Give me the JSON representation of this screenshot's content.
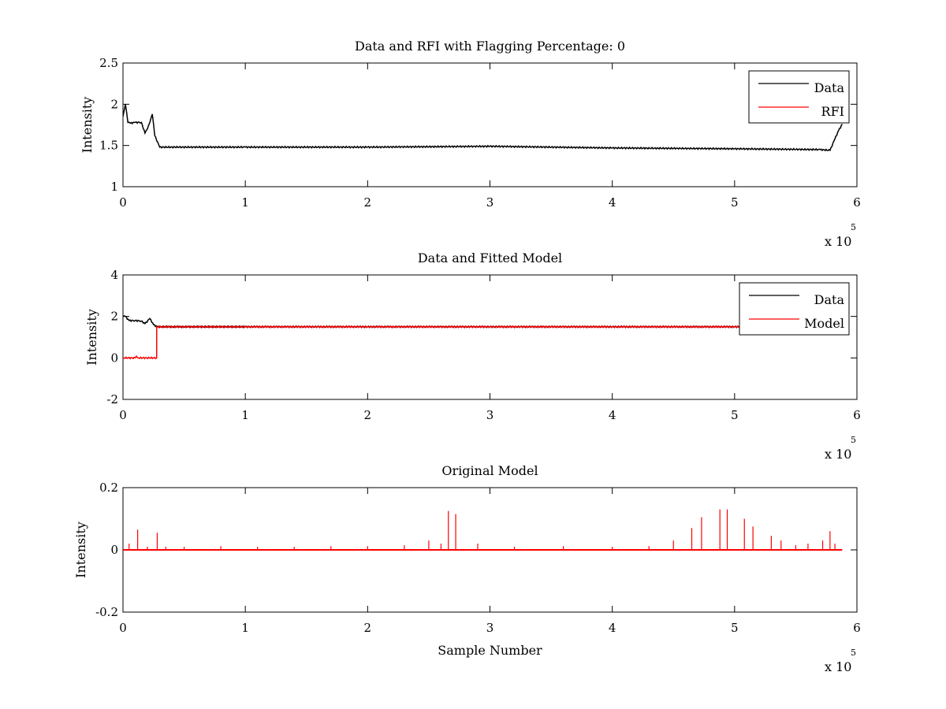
{
  "chart_data": [
    {
      "type": "line",
      "title": "Data and RFI with Flagging Percentage: 0",
      "xlabel": "",
      "ylabel": "Intensity",
      "xlim": [
        0,
        6
      ],
      "ylim": [
        1,
        2.5
      ],
      "xticks": [
        "0",
        "1",
        "2",
        "3",
        "4",
        "5",
        "6"
      ],
      "yticks": [
        "1",
        "1.5",
        "2",
        "2.5"
      ],
      "x_multiplier": {
        "base": "x 10",
        "exponent": "5"
      },
      "legend": "top-right",
      "series": [
        {
          "name": "Data",
          "color": "#000000",
          "x": [
            0,
            0.02,
            0.04,
            0.06,
            0.1,
            0.15,
            0.18,
            0.2,
            0.22,
            0.24,
            0.26,
            0.3,
            1,
            2,
            3,
            4,
            5,
            5.7,
            5.78,
            5.82,
            5.85,
            5.88
          ],
          "y": [
            1.85,
            2.0,
            1.78,
            1.77,
            1.78,
            1.78,
            1.65,
            1.7,
            1.78,
            1.88,
            1.62,
            1.48,
            1.48,
            1.48,
            1.49,
            1.47,
            1.46,
            1.45,
            1.44,
            1.58,
            1.68,
            1.76
          ]
        },
        {
          "name": "RFI",
          "color": "#ff0000",
          "x": [],
          "y": []
        }
      ]
    },
    {
      "type": "line",
      "title": "Data and Fitted Model",
      "xlabel": "",
      "ylabel": "Intensity",
      "xlim": [
        0,
        6
      ],
      "ylim": [
        -2,
        4
      ],
      "xticks": [
        "0",
        "1",
        "2",
        "3",
        "4",
        "5",
        "6"
      ],
      "yticks": [
        "-2",
        "0",
        "2",
        "4"
      ],
      "x_multiplier": {
        "base": "x 10",
        "exponent": "5"
      },
      "legend": "top-right",
      "series": [
        {
          "name": "Data",
          "color": "#000000",
          "x": [
            0,
            0.02,
            0.05,
            0.1,
            0.15,
            0.18,
            0.22,
            0.25,
            0.28,
            1,
            2,
            3,
            4,
            5,
            5.88
          ],
          "y": [
            2.0,
            2.0,
            1.8,
            1.8,
            1.78,
            1.65,
            1.9,
            1.6,
            1.5,
            1.5,
            1.5,
            1.5,
            1.5,
            1.5,
            1.5
          ]
        },
        {
          "name": "Model",
          "color": "#ff0000",
          "x": [
            0,
            0.1,
            0.11,
            0.12,
            0.275,
            0.276,
            1,
            2,
            3,
            4,
            5,
            5.88
          ],
          "y": [
            0.0,
            0.0,
            0.08,
            0.0,
            0.0,
            1.5,
            1.5,
            1.5,
            1.5,
            1.5,
            1.5,
            1.5
          ]
        }
      ]
    },
    {
      "type": "line",
      "title": "Original Model",
      "xlabel": "Sample Number",
      "ylabel": "Intensity",
      "xlim": [
        0,
        6
      ],
      "ylim": [
        -0.2,
        0.2
      ],
      "xticks": [
        "0",
        "1",
        "2",
        "3",
        "4",
        "5",
        "6"
      ],
      "yticks": [
        "-0.2",
        "0",
        "0.2"
      ],
      "x_multiplier": {
        "base": "x 10",
        "exponent": "5"
      },
      "legend": "none",
      "series": [
        {
          "color": "#ff0000",
          "baseline": 0.0,
          "x_end": 5.88,
          "spikes": [
            [
              0.05,
              0.02
            ],
            [
              0.12,
              0.065
            ],
            [
              0.2,
              0.01
            ],
            [
              0.28,
              0.055
            ],
            [
              0.35,
              0.01
            ],
            [
              0.5,
              0.01
            ],
            [
              0.8,
              0.012
            ],
            [
              1.1,
              0.01
            ],
            [
              1.4,
              0.01
            ],
            [
              1.7,
              0.012
            ],
            [
              2.0,
              0.012
            ],
            [
              2.3,
              0.015
            ],
            [
              2.5,
              0.03
            ],
            [
              2.6,
              0.02
            ],
            [
              2.66,
              0.125
            ],
            [
              2.72,
              0.115
            ],
            [
              2.9,
              0.02
            ],
            [
              3.2,
              0.01
            ],
            [
              3.6,
              0.012
            ],
            [
              4.0,
              0.01
            ],
            [
              4.3,
              0.012
            ],
            [
              4.5,
              0.03
            ],
            [
              4.65,
              0.07
            ],
            [
              4.73,
              0.105
            ],
            [
              4.88,
              0.13
            ],
            [
              4.94,
              0.13
            ],
            [
              5.08,
              0.1
            ],
            [
              5.15,
              0.075
            ],
            [
              5.3,
              0.045
            ],
            [
              5.38,
              0.03
            ],
            [
              5.5,
              0.015
            ],
            [
              5.6,
              0.02
            ],
            [
              5.72,
              0.03
            ],
            [
              5.78,
              0.06
            ],
            [
              5.82,
              0.02
            ]
          ]
        }
      ]
    }
  ]
}
